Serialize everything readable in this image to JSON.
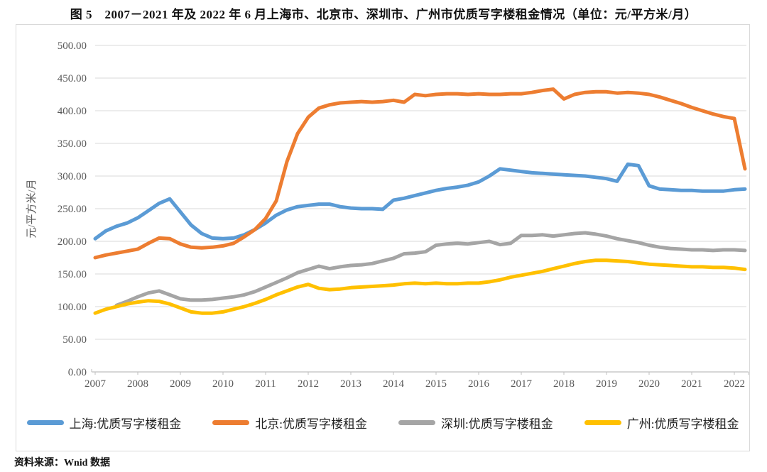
{
  "figure": {
    "title": "图 5　2007－2021 年及 2022 年 6 月上海市、北京市、深圳市、广州市优质写字楼租金情况（单位：元/平方米/月）",
    "source": "资料来源：Wnid 数据"
  },
  "chart_data": {
    "type": "line",
    "title": "2007-2021年及2022年6月上海市、北京市、深圳市、广州市优质写字楼租金情况",
    "unit": "元/平方米/月",
    "ylabel": "元/平方米/月",
    "xlabel": "",
    "ylim": [
      0,
      500
    ],
    "y_tick_step": 50,
    "y_tick_format": "0.00",
    "x_tick_labels": [
      "2007",
      "2008",
      "2009",
      "2010",
      "2011",
      "2012",
      "2013",
      "2014",
      "2015",
      "2016",
      "2017",
      "2018",
      "2019",
      "2020",
      "2021",
      "2022"
    ],
    "x_frequency": "quarterly",
    "x_range": [
      "2007Q1",
      "2022Q2"
    ],
    "grid": "horizontal",
    "legend_position": "bottom",
    "axis_color": "#bfbfbf",
    "grid_color": "#d9d9d9",
    "tick_label_color": "#595959",
    "series": [
      {
        "name": "上海:优质写字楼租金",
        "color": "#5B9BD5",
        "values": [
          204,
          216,
          223,
          228,
          236,
          247,
          258,
          265,
          245,
          225,
          212,
          205,
          204,
          205,
          210,
          218,
          228,
          240,
          248,
          253,
          255,
          257,
          257,
          253,
          251,
          250,
          250,
          249,
          263,
          266,
          270,
          274,
          278,
          281,
          283,
          286,
          291,
          300,
          311,
          309,
          307,
          305,
          304,
          303,
          302,
          301,
          300,
          298,
          296,
          292,
          318,
          316,
          285,
          280,
          279,
          278,
          278,
          277,
          277,
          277,
          279,
          280
        ]
      },
      {
        "name": "北京:优质写字楼租金",
        "color": "#ED7D31",
        "values": [
          175,
          179,
          182,
          185,
          188,
          197,
          205,
          204,
          196,
          191,
          190,
          191,
          193,
          197,
          207,
          218,
          235,
          262,
          322,
          365,
          390,
          404,
          409,
          412,
          413,
          414,
          413,
          414,
          416,
          413,
          425,
          423,
          425,
          426,
          426,
          425,
          426,
          425,
          425,
          426,
          426,
          428,
          431,
          433,
          418,
          425,
          428,
          429,
          429,
          427,
          428,
          427,
          425,
          421,
          416,
          411,
          405,
          400,
          395,
          391,
          388,
          311
        ]
      },
      {
        "name": "深圳:优质写字楼租金",
        "color": "#A5A5A5",
        "values": [
          null,
          null,
          102,
          108,
          115,
          121,
          124,
          118,
          112,
          110,
          110,
          111,
          113,
          115,
          118,
          123,
          130,
          137,
          144,
          152,
          157,
          162,
          158,
          161,
          163,
          164,
          166,
          170,
          174,
          181,
          182,
          184,
          194,
          196,
          197,
          196,
          198,
          200,
          195,
          197,
          209,
          209,
          210,
          208,
          210,
          212,
          213,
          211,
          208,
          204,
          201,
          198,
          194,
          191,
          189,
          188,
          187,
          187,
          186,
          187,
          187,
          186
        ]
      },
      {
        "name": "广州:优质写字楼租金",
        "color": "#FFC000",
        "values": [
          90,
          96,
          100,
          104,
          107,
          109,
          108,
          104,
          98,
          92,
          90,
          90,
          92,
          96,
          100,
          105,
          111,
          118,
          124,
          130,
          134,
          128,
          126,
          127,
          129,
          130,
          131,
          132,
          133,
          135,
          136,
          135,
          136,
          135,
          135,
          136,
          136,
          138,
          141,
          145,
          148,
          151,
          154,
          158,
          162,
          166,
          169,
          171,
          171,
          170,
          169,
          167,
          165,
          164,
          163,
          162,
          161,
          161,
          160,
          160,
          159,
          157
        ]
      }
    ]
  }
}
